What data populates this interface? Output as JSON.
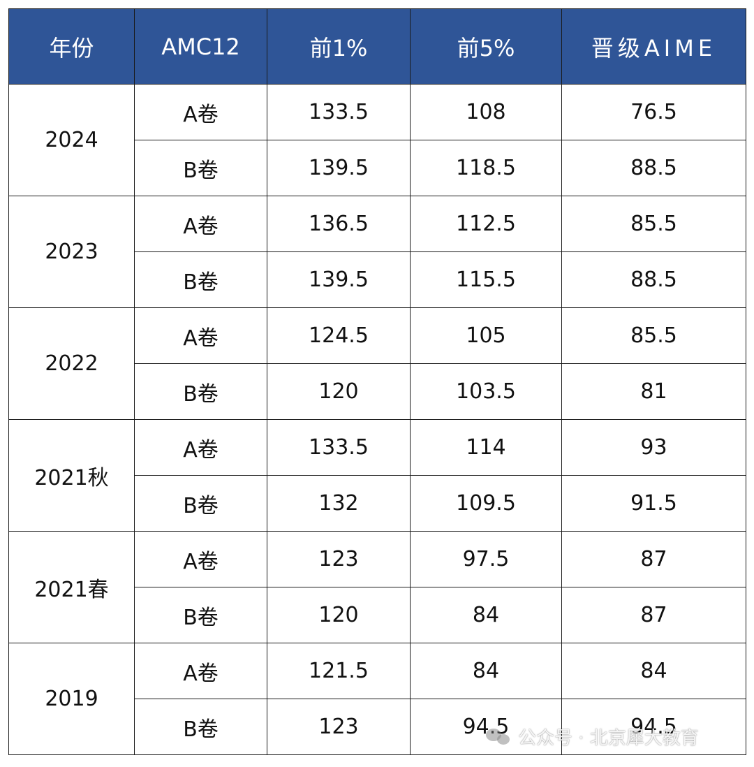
{
  "table": {
    "headers": [
      "年份",
      "AMC12",
      "前1%",
      "前5%",
      "晋级AIME"
    ],
    "groups": [
      {
        "year": "2024",
        "rows": [
          {
            "paper": "A卷",
            "top1": "133.5",
            "top5": "108",
            "aime": "76.5"
          },
          {
            "paper": "B卷",
            "top1": "139.5",
            "top5": "118.5",
            "aime": "88.5"
          }
        ]
      },
      {
        "year": "2023",
        "rows": [
          {
            "paper": "A卷",
            "top1": "136.5",
            "top5": "112.5",
            "aime": "85.5"
          },
          {
            "paper": "B卷",
            "top1": "139.5",
            "top5": "115.5",
            "aime": "88.5"
          }
        ]
      },
      {
        "year": "2022",
        "rows": [
          {
            "paper": "A卷",
            "top1": "124.5",
            "top5": "105",
            "aime": "85.5"
          },
          {
            "paper": "B卷",
            "top1": "120",
            "top5": "103.5",
            "aime": "81"
          }
        ]
      },
      {
        "year": "2021秋",
        "rows": [
          {
            "paper": "A卷",
            "top1": "133.5",
            "top5": "114",
            "aime": "93"
          },
          {
            "paper": "B卷",
            "top1": "132",
            "top5": "109.5",
            "aime": "91.5"
          }
        ]
      },
      {
        "year": "2021春",
        "rows": [
          {
            "paper": "A卷",
            "top1": "123",
            "top5": "97.5",
            "aime": "87"
          },
          {
            "paper": "B卷",
            "top1": "120",
            "top5": "84",
            "aime": "87"
          }
        ]
      },
      {
        "year": "2019",
        "rows": [
          {
            "paper": "A卷",
            "top1": "121.5",
            "top5": "84",
            "aime": "84"
          },
          {
            "paper": "B卷",
            "top1": "123",
            "top5": "94.5",
            "aime": "94.5"
          }
        ]
      }
    ]
  },
  "watermark": {
    "text": "公众号 · 北京犀大教育",
    "icon": "wechat-icon"
  },
  "colors": {
    "header_bg": "#2f5597",
    "header_text": "#ffffff",
    "border": "#1a1a1a"
  }
}
